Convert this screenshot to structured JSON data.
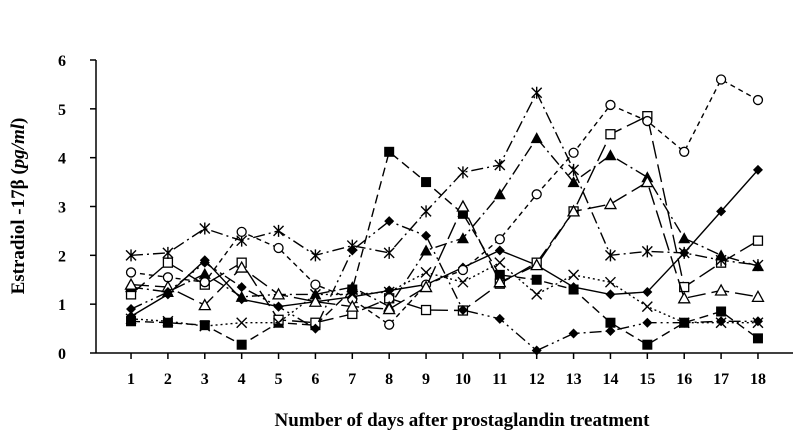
{
  "chart_data": {
    "type": "line",
    "title": "",
    "xlabel": "Number of days after prostaglandin treatment",
    "ylabel_parts": [
      "Estradiol -17β (",
      "pg/ml",
      ")"
    ],
    "x": [
      1,
      2,
      3,
      4,
      5,
      6,
      7,
      8,
      9,
      10,
      11,
      12,
      13,
      14,
      15,
      16,
      17,
      18
    ],
    "x_ticks": [
      "1",
      "2",
      "3",
      "4",
      "5",
      "6",
      "7",
      "8",
      "9",
      "10",
      "11",
      "12",
      "13",
      "14",
      "15",
      "16",
      "17",
      "18"
    ],
    "y_ticks": [
      "0",
      "1",
      "2",
      "3",
      "4",
      "5",
      "6"
    ],
    "ylim": [
      0,
      6
    ],
    "xlim": [
      0.05,
      18.95
    ],
    "grid": false,
    "legend": "none",
    "series": [
      {
        "style": "solid-filled-diamond",
        "values": [
          0.75,
          1.2,
          1.9,
          1.1,
          0.95,
          1.05,
          1.15,
          1.28,
          1.4,
          1.75,
          2.1,
          1.8,
          1.35,
          1.2,
          1.25,
          2.05,
          2.9,
          3.75
        ]
      },
      {
        "style": "dashed-filled-square",
        "values": [
          0.65,
          0.62,
          0.57,
          0.17,
          0.62,
          0.57,
          1.3,
          4.12,
          3.5,
          2.85,
          1.6,
          1.5,
          1.3,
          0.62,
          0.17,
          0.62,
          0.85,
          0.3
        ]
      },
      {
        "style": "longdash-open-square",
        "values": [
          1.2,
          1.85,
          1.4,
          1.85,
          0.68,
          0.62,
          0.8,
          1.12,
          0.88,
          0.87,
          1.42,
          1.85,
          2.9,
          4.48,
          4.85,
          1.35,
          1.85,
          2.3
        ]
      },
      {
        "style": "dashdot-filled-triangle",
        "values": [
          1.35,
          1.25,
          1.62,
          1.15,
          1.2,
          1.2,
          1.35,
          0.95,
          2.1,
          2.35,
          3.25,
          4.4,
          3.5,
          4.05,
          3.6,
          2.35,
          2.0,
          1.78
        ]
      },
      {
        "style": "dashdot-star",
        "values": [
          2.0,
          2.05,
          2.55,
          2.3,
          2.5,
          2.0,
          2.2,
          2.05,
          2.9,
          3.7,
          3.85,
          5.33,
          3.75,
          2.0,
          2.08,
          2.05,
          1.9,
          1.8
        ]
      },
      {
        "style": "shortdash-open-circle",
        "values": [
          1.65,
          1.55,
          1.45,
          2.48,
          2.15,
          1.4,
          1.1,
          0.58,
          1.4,
          1.7,
          2.33,
          3.25,
          4.1,
          5.08,
          4.75,
          4.12,
          5.6,
          5.18
        ]
      },
      {
        "style": "dotted-cross",
        "values": [
          0.7,
          0.65,
          0.55,
          0.62,
          0.62,
          1.2,
          1.2,
          1.25,
          1.65,
          1.45,
          1.85,
          1.2,
          1.6,
          1.45,
          0.95,
          0.62,
          0.62,
          0.62
        ]
      },
      {
        "style": "longdash-open-triangle",
        "values": [
          1.4,
          1.35,
          0.98,
          1.75,
          1.2,
          1.05,
          0.95,
          0.9,
          1.35,
          3.0,
          1.45,
          1.8,
          2.9,
          3.05,
          3.5,
          1.12,
          1.28,
          1.15
        ]
      },
      {
        "style": "dashdotdot-filled-diamond",
        "values": [
          0.9,
          1.25,
          1.85,
          1.35,
          0.95,
          0.5,
          2.1,
          2.7,
          2.4,
          0.88,
          0.7,
          0.05,
          0.4,
          0.45,
          0.62,
          0.62,
          0.65,
          0.65
        ]
      }
    ]
  }
}
